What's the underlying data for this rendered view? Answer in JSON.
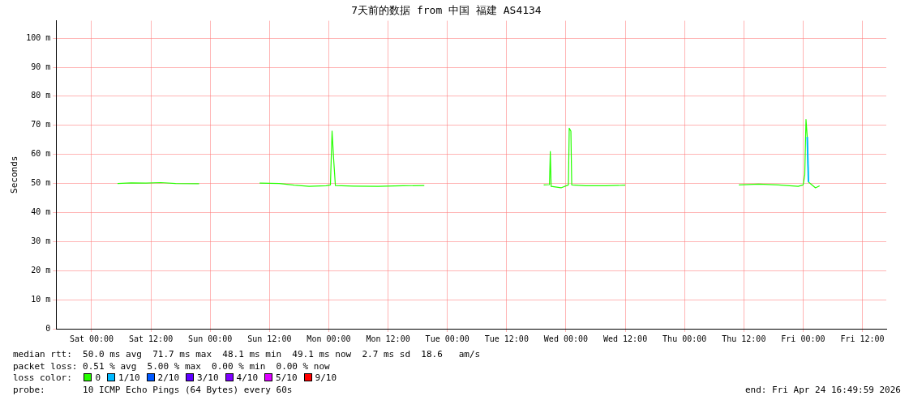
{
  "chart_data": {
    "type": "line",
    "title": "7天前的数据 from 中国 福建 AS4134",
    "ylabel": "Seconds",
    "xlim": [
      "2026-04-17T16:50",
      "2026-04-24T16:50"
    ],
    "xticks": [
      {
        "value": "2026-04-18T00:00",
        "label": "Sat 00:00"
      },
      {
        "value": "2026-04-18T12:00",
        "label": "Sat 12:00"
      },
      {
        "value": "2026-04-19T00:00",
        "label": "Sun 00:00"
      },
      {
        "value": "2026-04-19T12:00",
        "label": "Sun 12:00"
      },
      {
        "value": "2026-04-20T00:00",
        "label": "Mon 00:00"
      },
      {
        "value": "2026-04-20T12:00",
        "label": "Mon 12:00"
      },
      {
        "value": "2026-04-21T00:00",
        "label": "Tue 00:00"
      },
      {
        "value": "2026-04-21T12:00",
        "label": "Tue 12:00"
      },
      {
        "value": "2026-04-22T00:00",
        "label": "Wed 00:00"
      },
      {
        "value": "2026-04-22T12:00",
        "label": "Wed 12:00"
      },
      {
        "value": "2026-04-23T00:00",
        "label": "Thu 00:00"
      },
      {
        "value": "2026-04-23T12:00",
        "label": "Thu 12:00"
      },
      {
        "value": "2026-04-24T00:00",
        "label": "Fri 00:00"
      },
      {
        "value": "2026-04-24T12:00",
        "label": "Fri 12:00"
      }
    ],
    "ylim": [
      0,
      106
    ],
    "yticks": [
      0,
      {
        "value": 10,
        "label": "10 m"
      },
      {
        "value": 20,
        "label": "20 m"
      },
      {
        "value": 30,
        "label": "30 m"
      },
      {
        "value": 40,
        "label": "40 m"
      },
      {
        "value": 50,
        "label": "50 m"
      },
      {
        "value": 60,
        "label": "60 m"
      },
      {
        "value": 70,
        "label": "70 m"
      },
      {
        "value": 80,
        "label": "80 m"
      },
      {
        "value": 90,
        "label": "90 m"
      },
      {
        "value": 100,
        "label": "100 m"
      }
    ],
    "grid": true,
    "legend": "bottom",
    "legend_title": "loss color:",
    "marker": "none",
    "line_style": "solid",
    "annotations": [
      "median rtt:  50.0 ms avg  71.7 ms max  48.1 ms min  49.1 ms now  2.7 ms sd  18.6   am/s",
      "packet loss: 0.51 % avg  5.00 % max  0.00 % min  0.00 % now",
      "probe:       10 ICMP Echo Pings (64 Bytes) every 60s",
      "end: Fri Apr 24 16:49:59 2026"
    ],
    "x": [
      "2026-04-18T05:15",
      "2026-04-18T08:00",
      "2026-04-18T11:00",
      "2026-04-18T14:00",
      "2026-04-18T17:00",
      "2026-04-18T21:45",
      "2026-04-19T02:00",
      "2026-04-19T10:00",
      "2026-04-19T14:00",
      "2026-04-19T17:00",
      "2026-04-19T20:00",
      "2026-04-19T23:30",
      "2026-04-20T00:20",
      "2026-04-20T00:40",
      "2026-04-20T01:00",
      "2026-04-20T01:20",
      "2026-04-20T05:00",
      "2026-04-20T10:00",
      "2026-04-20T15:00",
      "2026-04-20T19:20",
      "2026-04-21T06:00",
      "2026-04-21T19:30",
      "2026-04-21T20:40",
      "2026-04-21T20:50",
      "2026-04-21T21:00",
      "2026-04-21T23:00",
      "2026-04-22T00:30",
      "2026-04-22T00:40",
      "2026-04-22T01:00",
      "2026-04-22T01:10",
      "2026-04-22T04:00",
      "2026-04-22T08:00",
      "2026-04-22T12:00",
      "2026-04-23T00:00",
      "2026-04-23T11:00",
      "2026-04-23T15:00",
      "2026-04-23T19:00",
      "2026-04-23T23:00",
      "2026-04-24T00:00",
      "2026-04-24T00:20",
      "2026-04-24T00:35",
      "2026-04-24T00:50",
      "2026-04-24T01:05",
      "2026-04-24T02:30",
      "2026-04-24T03:20"
    ],
    "series": [
      {
        "name": "0",
        "color": "#26ff00",
        "values": [
          50,
          50.2,
          50.1,
          50.3,
          50,
          49.9,
          null,
          50.1,
          50,
          49.4,
          49,
          49.2,
          49.5,
          68,
          58,
          49.3,
          49.1,
          49,
          49.2,
          49.3,
          null,
          49.5,
          49.6,
          61,
          49,
          48.5,
          49.5,
          69,
          68,
          49.5,
          49.2,
          49.2,
          49.4,
          null,
          49.5,
          49.8,
          49.5,
          49,
          49.5,
          53,
          72,
          66,
          50.5,
          48.5,
          49.2
        ]
      },
      {
        "name": "1/10",
        "color": "#00b8ff",
        "values": [
          null,
          null,
          null,
          null,
          null,
          null,
          null,
          null,
          null,
          null,
          null,
          null,
          null,
          null,
          null,
          null,
          null,
          null,
          null,
          null,
          null,
          null,
          null,
          null,
          null,
          null,
          null,
          null,
          null,
          null,
          null,
          null,
          null,
          null,
          null,
          null,
          null,
          null,
          null,
          null,
          null,
          66,
          50.5,
          null,
          null
        ]
      },
      {
        "name": "2/10",
        "color": "#0059ff",
        "values": [
          null,
          null,
          null,
          null,
          null,
          null,
          null,
          null,
          null,
          null,
          null,
          null,
          null,
          null,
          null,
          null,
          null,
          null,
          null,
          null,
          null,
          null,
          null,
          null,
          null,
          null,
          null,
          null,
          null,
          null,
          null,
          null,
          null,
          null,
          null,
          null,
          null,
          null,
          null,
          null,
          null,
          null,
          null,
          null,
          null
        ]
      },
      {
        "name": "3/10",
        "color": "#5e00ff",
        "values": [
          null,
          null,
          null,
          null,
          null,
          null,
          null,
          null,
          null,
          null,
          null,
          null,
          null,
          null,
          null,
          null,
          null,
          null,
          null,
          null,
          null,
          null,
          null,
          null,
          null,
          null,
          null,
          null,
          null,
          null,
          null,
          null,
          null,
          null,
          null,
          null,
          null,
          null,
          null,
          null,
          null,
          null,
          null,
          null,
          null
        ]
      },
      {
        "name": "4/10",
        "color": "#7e00ff",
        "values": [
          null,
          null,
          null,
          null,
          null,
          null,
          null,
          null,
          null,
          null,
          null,
          null,
          null,
          null,
          null,
          null,
          null,
          null,
          null,
          null,
          null,
          null,
          null,
          null,
          null,
          null,
          null,
          null,
          null,
          null,
          null,
          null,
          null,
          null,
          null,
          null,
          null,
          null,
          null,
          null,
          null,
          null,
          null,
          null,
          null
        ]
      },
      {
        "name": "5/10",
        "color": "#dd00ff",
        "values": [
          null,
          null,
          null,
          null,
          null,
          null,
          null,
          null,
          null,
          null,
          null,
          null,
          null,
          null,
          null,
          null,
          null,
          null,
          null,
          null,
          null,
          null,
          null,
          null,
          null,
          null,
          null,
          null,
          null,
          null,
          null,
          null,
          null,
          null,
          null,
          null,
          null,
          null,
          null,
          null,
          null,
          null,
          null,
          null,
          null
        ]
      },
      {
        "name": "9/10",
        "color": "#ff0000",
        "values": [
          null,
          null,
          null,
          null,
          null,
          null,
          null,
          null,
          null,
          null,
          null,
          null,
          null,
          null,
          null,
          null,
          null,
          null,
          null,
          null,
          null,
          null,
          null,
          null,
          null,
          null,
          null,
          null,
          null,
          null,
          null,
          null,
          null,
          null,
          null,
          null,
          null,
          null,
          null,
          null,
          null,
          null,
          null,
          null,
          null
        ]
      }
    ]
  }
}
